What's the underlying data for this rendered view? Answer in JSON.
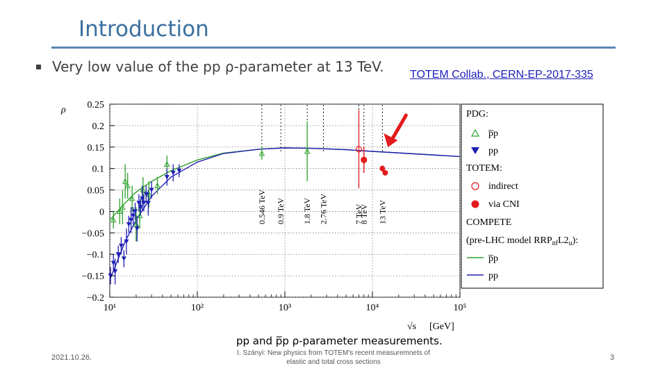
{
  "slide": {
    "title": "Introduction",
    "bullet_text": "Very low value of the pp ρ-parameter at 13 TeV.",
    "citation": "TOTEM Collab., CERN-EP-2017-335",
    "footer_date": "2021.10.26.",
    "footer_center": "I. Szányi: New physics from TOTEM's recent measuremnets of elastic and total cross sections",
    "footer_page": "3"
  },
  "chart_data": {
    "type": "scatter",
    "x_scale": "log",
    "xlim": [
      10,
      100000
    ],
    "ylim": [
      -0.2,
      0.25
    ],
    "ylabel": "ρ",
    "xlabel": "√s",
    "xlabel_unit": "[GeV]",
    "caption": "pp and p̅p ρ-parameter measurements.",
    "grid": true,
    "legend_position": "right",
    "x_ticks": [
      {
        "value": 10,
        "label": "10¹"
      },
      {
        "value": 100,
        "label": "10²"
      },
      {
        "value": 1000,
        "label": "10³"
      },
      {
        "value": 10000,
        "label": "10⁴"
      },
      {
        "value": 100000,
        "label": "10⁵"
      }
    ],
    "y_ticks": [
      {
        "value": 0.25,
        "label": "0.25"
      },
      {
        "value": 0.2,
        "label": "0.2"
      },
      {
        "value": 0.15,
        "label": "0.15"
      },
      {
        "value": 0.1,
        "label": "0.1"
      },
      {
        "value": 0.05,
        "label": "0.05"
      },
      {
        "value": 0,
        "label": "0"
      },
      {
        "value": -0.05,
        "label": "−0.05"
      },
      {
        "value": -0.1,
        "label": "−0.1"
      },
      {
        "value": -0.15,
        "label": "−0.15"
      },
      {
        "value": -0.2,
        "label": "−0.2"
      }
    ],
    "energy_markers": [
      {
        "x": 546,
        "label": "0.546 TeV"
      },
      {
        "x": 900,
        "label": "0.9 TeV"
      },
      {
        "x": 1800,
        "label": "1.8 TeV"
      },
      {
        "x": 2760,
        "label": "2.76 TeV"
      },
      {
        "x": 7000,
        "label": "7 TeV"
      },
      {
        "x": 8000,
        "label": "8 TeV"
      },
      {
        "x": 13000,
        "label": "13 TeV"
      }
    ],
    "legend": {
      "pdg_header": "PDG:",
      "pbarp_label": "p̅p",
      "pp_label": "pp",
      "totem_header": "TOTEM:",
      "indirect_label": "indirect",
      "cni_label": "via CNI",
      "compete_header": "COMPETE",
      "compete_subheader": "(pre-LHC model RRP",
      "compete_sub_n": "nf",
      "compete_mid": "L2",
      "compete_sub_u": "u",
      "compete_tail": "):",
      "compete_pbarp_label": "p̅p",
      "compete_pp_label": "pp"
    },
    "series": [
      {
        "name": "PDG p̅p",
        "color": "#2ca02c",
        "marker": "open-triangle-up",
        "points": [
          {
            "x": 11.0,
            "y": -0.02,
            "err": 0.02
          },
          {
            "x": 13.0,
            "y": 0.0,
            "err": 0.03
          },
          {
            "x": 14.0,
            "y": 0.01,
            "err": 0.04
          },
          {
            "x": 15.0,
            "y": 0.07,
            "err": 0.04
          },
          {
            "x": 16.0,
            "y": 0.06,
            "err": 0.03
          },
          {
            "x": 18.0,
            "y": 0.03,
            "err": 0.03
          },
          {
            "x": 20.0,
            "y": -0.03,
            "err": 0.04
          },
          {
            "x": 22.0,
            "y": -0.01,
            "err": 0.03
          },
          {
            "x": 24.0,
            "y": 0.05,
            "err": 0.03
          },
          {
            "x": 28.0,
            "y": 0.04,
            "err": 0.03
          },
          {
            "x": 35.0,
            "y": 0.06,
            "err": 0.02
          },
          {
            "x": 45.0,
            "y": 0.11,
            "err": 0.02
          },
          {
            "x": 546.0,
            "y": 0.135,
            "err": 0.015
          },
          {
            "x": 1800.0,
            "y": 0.14,
            "err": 0.07
          }
        ]
      },
      {
        "name": "PDG pp",
        "color": "#1f1fb4",
        "marker": "filled-triangle-down",
        "points": [
          {
            "x": 10.2,
            "y": -0.15,
            "err": 0.02
          },
          {
            "x": 11.0,
            "y": -0.12,
            "err": 0.02
          },
          {
            "x": 11.5,
            "y": -0.14,
            "err": 0.03
          },
          {
            "x": 12.5,
            "y": -0.1,
            "err": 0.02
          },
          {
            "x": 13.5,
            "y": -0.08,
            "err": 0.02
          },
          {
            "x": 14.5,
            "y": -0.11,
            "err": 0.02
          },
          {
            "x": 15.5,
            "y": -0.07,
            "err": 0.03
          },
          {
            "x": 16.5,
            "y": -0.03,
            "err": 0.02
          },
          {
            "x": 17.5,
            "y": -0.02,
            "err": 0.03
          },
          {
            "x": 18.5,
            "y": -0.01,
            "err": 0.02
          },
          {
            "x": 19.5,
            "y": 0.0,
            "err": 0.02
          },
          {
            "x": 20.5,
            "y": -0.04,
            "err": 0.03
          },
          {
            "x": 21.5,
            "y": 0.02,
            "err": 0.02
          },
          {
            "x": 22.5,
            "y": 0.01,
            "err": 0.02
          },
          {
            "x": 23.5,
            "y": 0.03,
            "err": 0.03
          },
          {
            "x": 24.5,
            "y": 0.02,
            "err": 0.02
          },
          {
            "x": 26.0,
            "y": 0.04,
            "err": 0.02
          },
          {
            "x": 27.5,
            "y": 0.02,
            "err": 0.03
          },
          {
            "x": 30.0,
            "y": 0.05,
            "err": 0.02
          },
          {
            "x": 45.0,
            "y": 0.08,
            "err": 0.02
          },
          {
            "x": 53.0,
            "y": 0.09,
            "err": 0.02
          },
          {
            "x": 62.0,
            "y": 0.095,
            "err": 0.015
          }
        ]
      },
      {
        "name": "TOTEM indirect",
        "color": "#e31a1c",
        "marker": "open-circle",
        "points": [
          {
            "x": 7000,
            "y": 0.145,
            "err": 0.091
          },
          {
            "x": 8000,
            "y": 0.12,
            "err": 0.03
          }
        ]
      },
      {
        "name": "TOTEM via CNI",
        "color": "#e31a1c",
        "marker": "filled-circle",
        "points": [
          {
            "x": 8000,
            "y": 0.12,
            "err": 0.03
          },
          {
            "x": 13000,
            "y": 0.1,
            "err": 0.007
          },
          {
            "x": 14000,
            "y": 0.09,
            "err": 0.006
          }
        ]
      }
    ],
    "curves": [
      {
        "name": "COMPETE p̅p",
        "color": "#2ca02c",
        "points": [
          {
            "x": 10,
            "y": -0.02
          },
          {
            "x": 15,
            "y": 0.02
          },
          {
            "x": 20,
            "y": 0.045
          },
          {
            "x": 30,
            "y": 0.07
          },
          {
            "x": 50,
            "y": 0.095
          },
          {
            "x": 100,
            "y": 0.12
          },
          {
            "x": 200,
            "y": 0.136
          },
          {
            "x": 500,
            "y": 0.145
          },
          {
            "x": 1000,
            "y": 0.148
          },
          {
            "x": 2000,
            "y": 0.147
          },
          {
            "x": 5000,
            "y": 0.144
          },
          {
            "x": 10000,
            "y": 0.14
          },
          {
            "x": 100000,
            "y": 0.128
          }
        ]
      },
      {
        "name": "COMPETE pp",
        "color": "#1f1fb4",
        "points": [
          {
            "x": 10,
            "y": -0.16
          },
          {
            "x": 15,
            "y": -0.07
          },
          {
            "x": 20,
            "y": -0.02
          },
          {
            "x": 30,
            "y": 0.035
          },
          {
            "x": 50,
            "y": 0.08
          },
          {
            "x": 100,
            "y": 0.115
          },
          {
            "x": 200,
            "y": 0.135
          },
          {
            "x": 500,
            "y": 0.145
          },
          {
            "x": 1000,
            "y": 0.148
          },
          {
            "x": 2000,
            "y": 0.147
          },
          {
            "x": 5000,
            "y": 0.144
          },
          {
            "x": 10000,
            "y": 0.14
          },
          {
            "x": 100000,
            "y": 0.128
          }
        ]
      }
    ],
    "annotation_arrow": {
      "x": 13000,
      "y": 0.14,
      "color": "#e31a1c"
    }
  }
}
